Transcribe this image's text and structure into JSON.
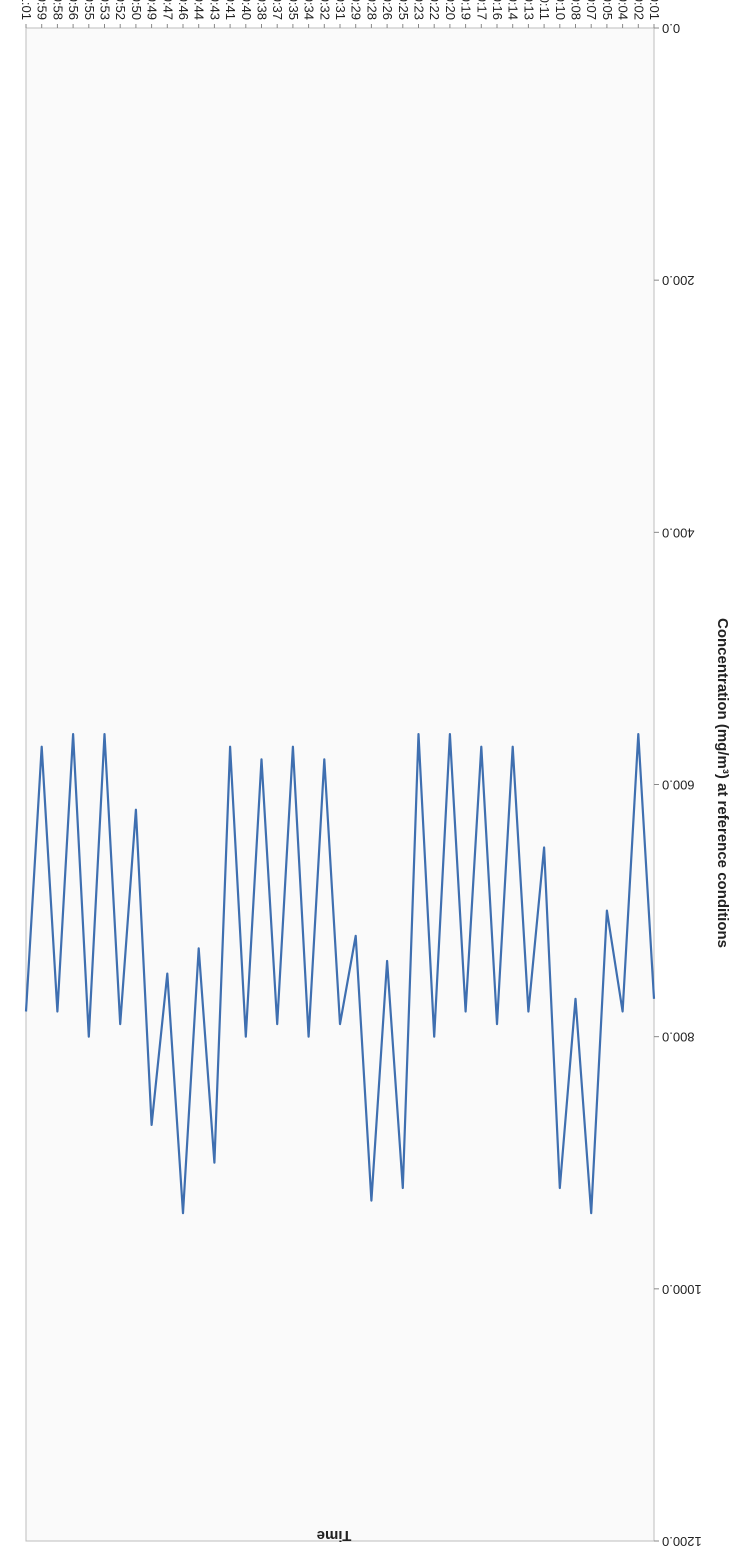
{
  "chart_data": {
    "type": "line",
    "orientation": "rotated 180 degrees",
    "xlabel": "Time",
    "ylabel": "Concentration (mg/m³) at reference conditions",
    "ylim": [
      0,
      1200
    ],
    "y_ticks": [
      "0.0",
      "200.0",
      "400.0",
      "600.0",
      "800.0",
      "1000.0",
      "1200.0"
    ],
    "x_tick_labels": [
      "10:01",
      "10:02",
      "10:04",
      "10:05",
      "10:07",
      "10:08",
      "10:10",
      "10:11",
      "10:13",
      "10:14",
      "10:16",
      "10:17",
      "10:19",
      "10:20",
      "10:22",
      "10:23",
      "10:25",
      "10:26",
      "10:28",
      "10:29",
      "10:31",
      "10:32",
      "10:34",
      "10:35",
      "10:37",
      "10:38",
      "10:40",
      "10:41",
      "10:43",
      "10:44",
      "10:46",
      "10:47",
      "10:49",
      "10:50",
      "10:52",
      "10:53",
      "10:55",
      "10:56",
      "10:58",
      "10:59",
      "11:01"
    ],
    "grid": false,
    "legend": "none",
    "line_color": "#3f6fb0",
    "series": [
      {
        "x": [
          "10:01",
          "10:02",
          "10:04",
          "10:05",
          "10:07",
          "10:08",
          "10:10",
          "10:11",
          "10:13",
          "10:14",
          "10:16",
          "10:17",
          "10:19",
          "10:20",
          "10:22",
          "10:23",
          "10:25",
          "10:26",
          "10:28",
          "10:29",
          "10:31",
          "10:32",
          "10:34",
          "10:35",
          "10:37",
          "10:38",
          "10:40",
          "10:41",
          "10:43",
          "10:44",
          "10:46",
          "10:47",
          "10:49",
          "10:50",
          "10:52",
          "10:53",
          "10:55",
          "10:56",
          "10:58",
          "10:59",
          "11:01"
        ],
        "values": [
          770,
          560,
          780,
          700,
          940,
          770,
          920,
          650,
          780,
          570,
          790,
          570,
          780,
          560,
          800,
          560,
          920,
          740,
          930,
          720,
          790,
          580,
          800,
          570,
          790,
          580,
          800,
          570,
          900,
          730,
          940,
          750,
          870,
          620,
          790,
          560,
          800,
          560,
          780,
          570,
          780
        ]
      }
    ]
  }
}
